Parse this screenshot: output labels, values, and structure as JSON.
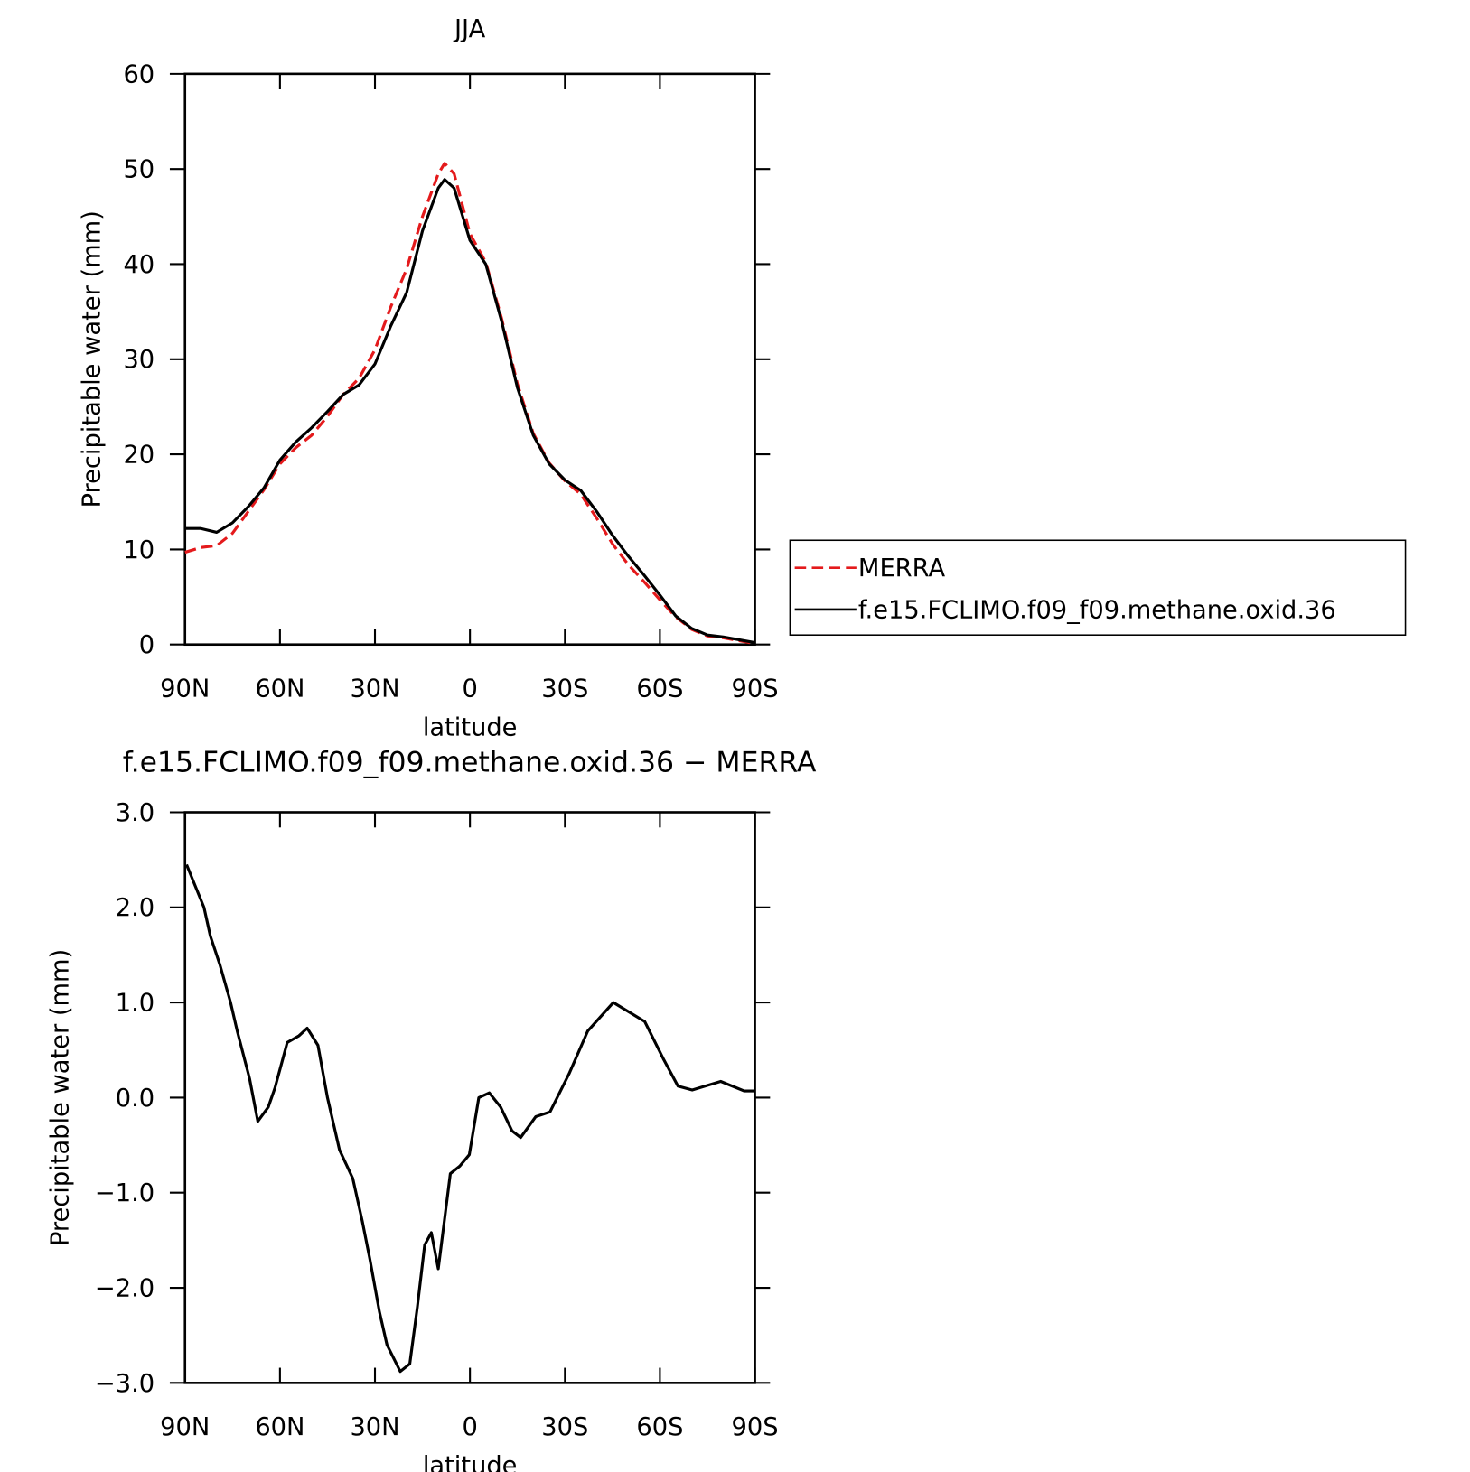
{
  "chart_data": [
    {
      "type": "line",
      "title": "JJA",
      "x_label": "latitude",
      "y_label": "Precipitable water (mm)",
      "x": [
        90,
        85,
        80,
        75,
        70,
        65,
        60,
        55,
        50,
        45,
        40,
        35,
        30,
        25,
        20,
        15,
        10,
        8,
        5,
        0,
        -5,
        -10,
        -15,
        -20,
        -25,
        -30,
        -35,
        -40,
        -45,
        -50,
        -55,
        -60,
        -65,
        -70,
        -75,
        -80,
        -85,
        -90
      ],
      "series": [
        {
          "name": "MERRA",
          "color": "#e41a1c",
          "dash": true,
          "values": [
            9.7,
            10.2,
            10.4,
            11.7,
            14.0,
            16.3,
            19.0,
            20.7,
            22.0,
            24.0,
            26.3,
            28.0,
            31.0,
            35.5,
            39.5,
            45.0,
            49.5,
            50.6,
            49.5,
            43.2,
            40.2,
            34.3,
            27.4,
            22.2,
            19.1,
            17.2,
            15.8,
            13.3,
            10.6,
            8.4,
            6.6,
            4.7,
            2.9,
            1.6,
            0.9,
            0.7,
            0.4,
            0.1
          ]
        },
        {
          "name": "f.e15.FCLIMO.f09_f09.methane.oxid.36",
          "color": "#000000",
          "dash": false,
          "values": [
            12.2,
            12.2,
            11.8,
            12.8,
            14.5,
            16.5,
            19.4,
            21.3,
            22.8,
            24.5,
            26.3,
            27.3,
            29.5,
            33.5,
            37.0,
            43.5,
            48.0,
            48.9,
            48.0,
            42.5,
            40.0,
            34.0,
            27.0,
            22.0,
            19.0,
            17.3,
            16.2,
            14.0,
            11.5,
            9.3,
            7.3,
            5.2,
            3.0,
            1.7,
            1.0,
            0.8,
            0.5,
            0.2
          ]
        }
      ],
      "xlim": [
        90,
        -90
      ],
      "xticks": [
        {
          "value": 90,
          "label": "90N"
        },
        {
          "value": 60,
          "label": "60N"
        },
        {
          "value": 30,
          "label": "30N"
        },
        0,
        {
          "value": -30,
          "label": "30S"
        },
        {
          "value": -60,
          "label": "60S"
        },
        {
          "value": -90,
          "label": "90S"
        }
      ],
      "ylim": [
        0,
        60
      ],
      "yticks": [
        0,
        10,
        20,
        30,
        40,
        50,
        60
      ],
      "legend": "right"
    },
    {
      "type": "line",
      "title": "f.e15.FCLIMO.f09_f09.methane.oxid.36 − MERRA",
      "x_label": "latitude",
      "y_label": "Precipitable water (mm)",
      "x": [
        89.5,
        84,
        82,
        79,
        75.6,
        73.5,
        69.6,
        67,
        63.7,
        61.6,
        57.7,
        54,
        51.4,
        48,
        45,
        41.2,
        37,
        34,
        31.6,
        28.6,
        26.2,
        22,
        19,
        16.6,
        14.3,
        12.2,
        10,
        6.2,
        3.2,
        0.2,
        -2.8,
        -6.1,
        -9.7,
        -13.3,
        -16,
        -20.8,
        -25.3,
        -31.3,
        -37.2,
        -45.3,
        -55.2,
        -61.2,
        -65.7,
        -70.2,
        -79.2,
        -86.6,
        -90
      ],
      "series": [
        {
          "name": "f.e15.FCLIMO.f09_f09.methane.oxid.36 − MERRA",
          "color": "#000000",
          "dash": false,
          "values": [
            2.45,
            2.0,
            1.7,
            1.4,
            1.0,
            0.7,
            0.2,
            -0.25,
            -0.1,
            0.1,
            0.58,
            0.65,
            0.73,
            0.55,
            0.0,
            -0.55,
            -0.85,
            -1.3,
            -1.7,
            -2.25,
            -2.6,
            -2.88,
            -2.8,
            -2.2,
            -1.55,
            -1.42,
            -1.8,
            -0.8,
            -0.72,
            -0.6,
            0.0,
            0.05,
            -0.1,
            -0.35,
            -0.42,
            -0.2,
            -0.15,
            0.25,
            0.7,
            1.0,
            0.8,
            0.4,
            0.12,
            0.08,
            0.17,
            0.07,
            0.07
          ]
        }
      ],
      "xlim": [
        90,
        -90
      ],
      "xticks": [
        {
          "value": 90,
          "label": "90N"
        },
        {
          "value": 60,
          "label": "60N"
        },
        {
          "value": 30,
          "label": "30N"
        },
        0,
        {
          "value": -30,
          "label": "30S"
        },
        {
          "value": -60,
          "label": "60S"
        },
        {
          "value": -90,
          "label": "90S"
        }
      ],
      "ylim": [
        -3,
        3
      ],
      "yticks": [
        {
          "value": -3,
          "label": "−3.0"
        },
        {
          "value": -2,
          "label": "−2.0"
        },
        {
          "value": -1,
          "label": "−1.0"
        },
        {
          "value": 0,
          "label": "0.0"
        },
        {
          "value": 1,
          "label": "1.0"
        },
        {
          "value": 2,
          "label": "2.0"
        },
        {
          "value": 3,
          "label": "3.0"
        }
      ]
    }
  ]
}
